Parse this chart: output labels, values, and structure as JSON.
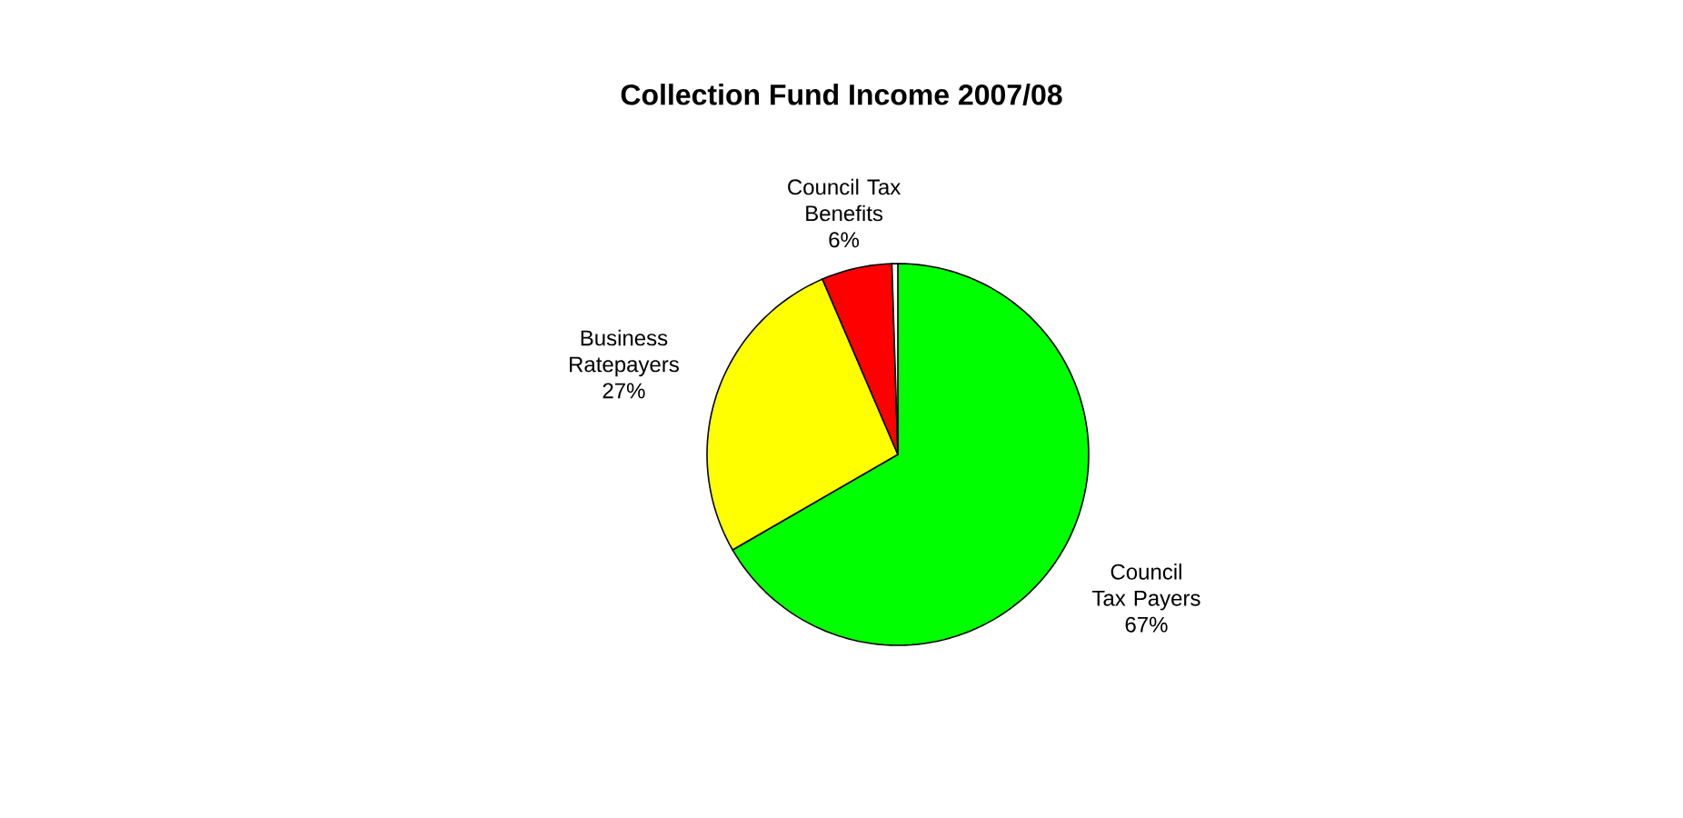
{
  "chart_data": {
    "type": "pie",
    "title": "Collection Fund Income 2007/08",
    "categories": [
      "Council Tax Payers",
      "Business Ratepayers",
      "Council Tax Benefits",
      null
    ],
    "values": [
      67,
      27,
      6,
      0.5
    ],
    "colors": [
      "#00ff00",
      "#ffff00",
      "#ff0000",
      "#ffffff"
    ],
    "value_labels": [
      "67%",
      "27%",
      "6%",
      null
    ]
  }
}
